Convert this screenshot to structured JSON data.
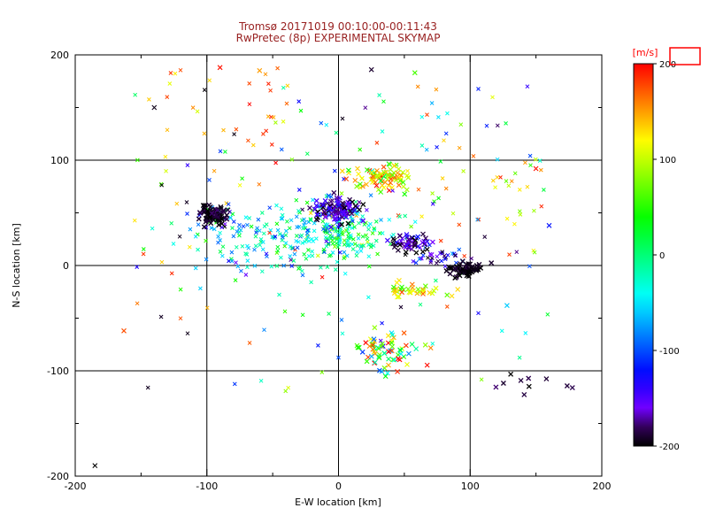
{
  "chart_data": {
    "type": "scatter",
    "title": "Tromsø 20171019 00:10:00-00:11:43",
    "subtitle": "RwPretec (8p) EXPERIMENTAL SKYMAP",
    "xlabel": "E-W location [km]",
    "ylabel": "N-S location [km]",
    "xlim": [
      -200,
      200
    ],
    "ylim": [
      -200,
      200
    ],
    "xticks": [
      -200,
      -100,
      0,
      100,
      200
    ],
    "yticks": [
      -200,
      -100,
      0,
      100,
      200
    ],
    "grid_lines": [
      -100,
      0,
      100
    ],
    "minor_tick_step": 50,
    "marker": "x",
    "point_encoding": "x = E-W location km, y = N-S location km, color = line-of-sight velocity m/s",
    "colors": {
      "background": "#ffffff",
      "axis": "#000000",
      "title": "#992222"
    },
    "colorbar": {
      "label": "[m/s]",
      "label_color": "#ff0000",
      "box_color": "#ff0000",
      "min": -200,
      "max": 200,
      "ticks": [
        200,
        100,
        0,
        -100,
        -200
      ],
      "colormap": "rainbow: black(-200) > purple > blue > cyan > green(0) > yellow > orange > red(+200)"
    },
    "clusters": [
      {
        "name": "teal-band",
        "cx": -30,
        "cy": 25,
        "sx": 42,
        "sy": 16,
        "n": 220,
        "v": -30,
        "v_sd": 45,
        "seed": 21,
        "size": 4,
        "w": 1.0
      },
      {
        "name": "green-subcluster",
        "cx": 2,
        "cy": 28,
        "sx": 12,
        "sy": 8,
        "n": 60,
        "v": 25,
        "v_sd": 35,
        "seed": 22,
        "size": 4,
        "w": 1.0
      },
      {
        "name": "west-black-fringe",
        "cx": -93,
        "cy": 42,
        "sx": 9,
        "sy": 7,
        "n": 25,
        "v": -110,
        "v_sd": 70,
        "seed": 12,
        "size": 4,
        "w": 1.0
      },
      {
        "name": "central-dark-halo",
        "cx": 0,
        "cy": 50,
        "sx": 14,
        "sy": 10,
        "n": 45,
        "v": -50,
        "v_sd": 85,
        "seed": 14,
        "size": 4,
        "w": 1.0
      },
      {
        "name": "north-orange-cluster",
        "cx": 32,
        "cy": 84,
        "sx": 13,
        "sy": 7,
        "n": 85,
        "v": 120,
        "v_sd": 45,
        "seed": 15,
        "size": 5,
        "w": 1.1
      },
      {
        "name": "yellow-arc",
        "cx": 59,
        "cy": -25,
        "sx": 13,
        "sy": 5,
        "n": 35,
        "v": 115,
        "v_sd": 30,
        "seed": 19,
        "size": 5,
        "w": 1.1
      },
      {
        "name": "south-mixed-cluster",
        "cx": 35,
        "cy": -80,
        "sx": 14,
        "sy": 9,
        "n": 70,
        "v": 70,
        "v_sd": 90,
        "seed": 20,
        "size": 5,
        "w": 1.1
      },
      {
        "name": "dark-blue-trail",
        "cx": 75,
        "cy": 8,
        "sx": 12,
        "sy": 6,
        "n": 35,
        "v": -140,
        "v_sd": 35,
        "seed": 17,
        "size": 4,
        "w": 1.0
      },
      {
        "name": "west-black-cluster",
        "cx": -95,
        "cy": 48,
        "sx": 5,
        "sy": 4,
        "n": 70,
        "v": -195,
        "v_sd": 8,
        "seed": 11,
        "size": 5,
        "w": 1.4
      },
      {
        "name": "central-dark-cluster",
        "cx": -2,
        "cy": 53,
        "sx": 8,
        "sy": 6,
        "n": 95,
        "v": -170,
        "v_sd": 30,
        "seed": 13,
        "size": 5,
        "w": 1.3
      },
      {
        "name": "mid-dark-cluster",
        "cx": 55,
        "cy": 21,
        "sx": 9,
        "sy": 5,
        "n": 55,
        "v": -170,
        "v_sd": 25,
        "seed": 16,
        "size": 5,
        "w": 1.2
      },
      {
        "name": "east-black-cluster",
        "cx": 96,
        "cy": -4,
        "sx": 7,
        "sy": 3,
        "n": 60,
        "v": -196,
        "v_sd": 6,
        "seed": 18,
        "size": 5,
        "w": 1.4
      },
      {
        "name": "southeast-black-line",
        "cx": 138,
        "cy": -112,
        "sx": 18,
        "sy": 7,
        "n": 10,
        "v": -190,
        "v_sd": 10,
        "seed": 23,
        "size": 5,
        "w": 1.3
      }
    ],
    "scatter_regions": [
      {
        "name": "topleft-red-scatter",
        "x0": -135,
        "x1": -35,
        "y0": 85,
        "y1": 190,
        "n": 26,
        "v0": 110,
        "v1": 200,
        "seed": 31,
        "size": 4
      },
      {
        "name": "east-warm-scatter",
        "x0": 60,
        "x1": 150,
        "y0": 30,
        "y1": 105,
        "n": 24,
        "v0": 60,
        "v1": 200,
        "seed": 32,
        "size": 4
      },
      {
        "name": "background-scatter",
        "x0": -160,
        "x1": 160,
        "y0": -60,
        "y1": 170,
        "n": 150,
        "v0": -200,
        "v1": 200,
        "seed": 33,
        "size": 4
      },
      {
        "name": "south-sparse-scatter",
        "x0": -150,
        "x1": 150,
        "y0": -125,
        "y1": -60,
        "n": 18,
        "v0": -200,
        "v1": 200,
        "seed": 34,
        "size": 4
      }
    ],
    "extra_points": [
      {
        "x": -185,
        "y": -190,
        "v": -200
      },
      {
        "x": -90,
        "y": 188,
        "v": 195
      },
      {
        "x": 25,
        "y": 186,
        "v": -190
      },
      {
        "x": -60,
        "y": 185,
        "v": 150
      },
      {
        "x": 150,
        "y": 92,
        "v": 195
      },
      {
        "x": -163,
        "y": -62,
        "v": 175
      },
      {
        "x": 128,
        "y": -38,
        "v": -60
      },
      {
        "x": 160,
        "y": 38,
        "v": -120
      },
      {
        "x": 58,
        "y": 183,
        "v": 60
      },
      {
        "x": -140,
        "y": 150,
        "v": -195
      }
    ]
  }
}
